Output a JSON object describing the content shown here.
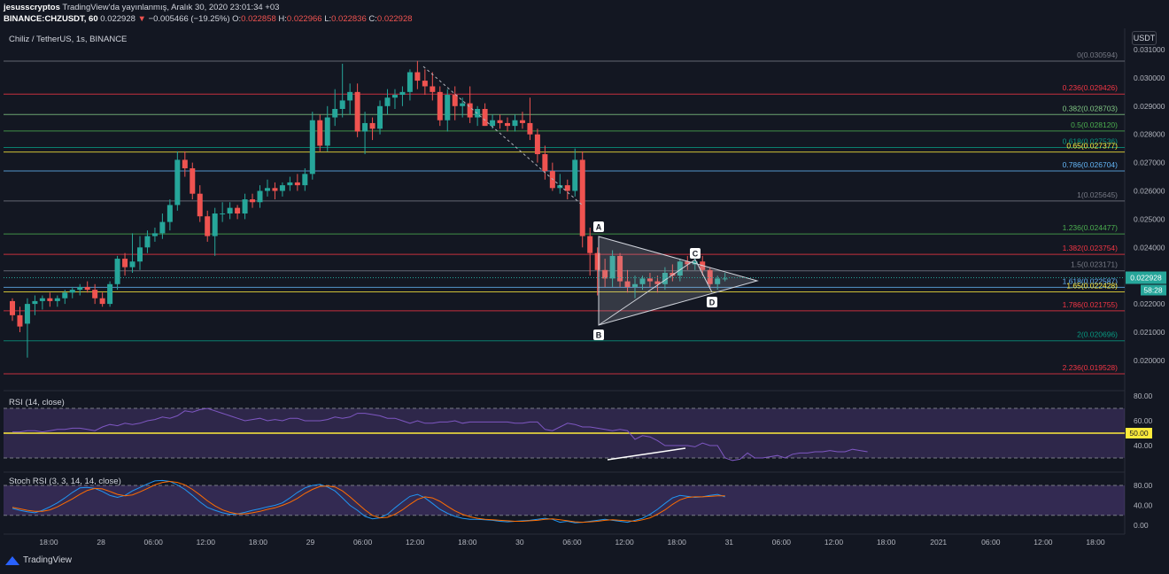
{
  "header": {
    "user": "jesusscryptos",
    "published": "TradingView'da yayınlanmış, Aralık 30, 2020 23:01:34 +03",
    "symbol": "BINANCE:CHZUSDT, 60",
    "last": "0.022928",
    "change": "−0.005466 (−19.25%)",
    "o_label": "O:",
    "o": "0.022858",
    "h_label": "H:",
    "h": "0.022966",
    "l_label": "L:",
    "l": "0.022836",
    "c_label": "C:",
    "c": "0.022928"
  },
  "chart_title": "Chiliz / TetherUS, 1s, BINANCE",
  "currency_button": "USDT",
  "price_axis": [
    "0.031000",
    "0.030000",
    "0.029000",
    "0.028000",
    "0.027000",
    "0.026000",
    "0.025000",
    "0.024000",
    "0.023000",
    "0.022000",
    "0.021000",
    "0.020000"
  ],
  "last_price_tag": "0.022928",
  "countdown_tag": "58:28",
  "fib_levels": [
    {
      "label": "0(0.030594)",
      "price": 0.030594,
      "color": "#787b86"
    },
    {
      "label": "0.236(0.029426)",
      "price": 0.029426,
      "color": "#f23645"
    },
    {
      "label": "0.382(0.028703)",
      "price": 0.028703,
      "color": "#81c784"
    },
    {
      "label": "0.5(0.028120)",
      "price": 0.02812,
      "color": "#4caf50"
    },
    {
      "label": "0.618(0.027536)",
      "price": 0.027536,
      "color": "#089981"
    },
    {
      "label": "0.65(0.027377)",
      "price": 0.027377,
      "color": "#ffeb3b"
    },
    {
      "label": "0.786(0.026704)",
      "price": 0.026704,
      "color": "#64b5f6"
    },
    {
      "label": "1(0.025645)",
      "price": 0.025645,
      "color": "#787b86"
    },
    {
      "label": "1.236(0.024477)",
      "price": 0.024477,
      "color": "#4caf50"
    },
    {
      "label": "1.382(0.023754)",
      "price": 0.023754,
      "color": "#f23645"
    },
    {
      "label": "1.5(0.023171)",
      "price": 0.023171,
      "color": "#787b86"
    },
    {
      "label": "1.618(0.022587)",
      "price": 0.022587,
      "color": "#64b5f6"
    },
    {
      "label": "1.65(0.022428)",
      "price": 0.022428,
      "color": "#ffeb3b"
    },
    {
      "label": "1.786(0.021755)",
      "price": 0.021755,
      "color": "#f23645"
    },
    {
      "label": "2(0.020696)",
      "price": 0.020696,
      "color": "#089981"
    },
    {
      "label": "2.236(0.019528)",
      "price": 0.019528,
      "color": "#f23645"
    }
  ],
  "pattern_points": [
    "A",
    "B",
    "C",
    "D"
  ],
  "rsi": {
    "label": "RSI (14, close)",
    "axis": [
      "80.00",
      "60.00",
      "40.00"
    ],
    "level_tag": "50.00",
    "values": [
      51,
      51,
      52,
      52,
      51,
      52,
      53,
      53,
      54,
      54,
      53,
      52,
      55,
      57,
      56,
      58,
      57,
      58,
      60,
      61,
      63,
      62,
      64,
      68,
      67,
      69,
      70,
      68,
      66,
      64,
      62,
      60,
      61,
      62,
      60,
      61,
      60,
      62,
      62,
      60,
      60,
      60,
      61,
      63,
      62,
      63,
      66,
      66,
      65,
      64,
      62,
      62,
      60,
      58,
      60,
      58,
      58,
      59,
      59,
      60,
      58,
      59,
      59,
      59,
      59,
      59,
      59,
      58,
      58,
      59,
      59,
      53,
      52,
      55,
      58,
      57,
      55,
      55,
      54,
      53,
      52,
      53,
      52,
      45,
      48,
      47,
      44,
      40,
      40,
      40,
      40,
      39,
      42,
      40,
      40,
      30,
      28,
      29,
      34,
      30,
      30,
      31,
      32,
      30,
      33,
      34,
      34,
      35,
      35,
      36,
      35,
      35,
      37,
      36,
      35
    ]
  },
  "stoch": {
    "label": "Stoch RSI (3, 3, 14, 14, close)",
    "axis": [
      "80.00",
      "40.00",
      "0.00"
    ],
    "k": [
      34,
      30,
      27,
      25,
      30,
      37,
      45,
      55,
      66,
      75,
      76,
      74,
      68,
      60,
      56,
      60,
      69,
      76,
      83,
      89,
      90,
      88,
      81,
      72,
      60,
      47,
      36,
      30,
      25,
      22,
      23,
      26,
      30,
      33,
      37,
      40,
      45,
      55,
      66,
      75,
      80,
      82,
      77,
      69,
      55,
      40,
      30,
      18,
      13,
      15,
      22,
      35,
      47,
      58,
      62,
      55,
      44,
      32,
      24,
      18,
      14,
      12,
      12,
      11,
      10,
      8,
      7,
      8,
      9,
      10,
      12,
      14,
      12,
      6,
      8,
      5,
      6,
      8,
      10,
      12,
      10,
      8,
      6,
      10,
      14,
      22,
      32,
      44,
      55,
      60,
      58,
      56,
      57,
      60,
      62,
      57
    ],
    "d": [
      36,
      33,
      30,
      28,
      28,
      31,
      37,
      45,
      53,
      62,
      70,
      74,
      73,
      68,
      62,
      59,
      61,
      67,
      74,
      81,
      86,
      88,
      86,
      81,
      72,
      61,
      49,
      39,
      31,
      26,
      23,
      23,
      25,
      28,
      32,
      35,
      40,
      46,
      54,
      64,
      72,
      78,
      79,
      77,
      69,
      57,
      44,
      31,
      20,
      15,
      16,
      22,
      31,
      42,
      52,
      57,
      55,
      48,
      38,
      29,
      22,
      17,
      14,
      12,
      11,
      10,
      9,
      8,
      8,
      9,
      10,
      12,
      13,
      11,
      9,
      7,
      6,
      7,
      8,
      10,
      11,
      10,
      9,
      8,
      11,
      15,
      22,
      31,
      42,
      51,
      56,
      57,
      57,
      58,
      59,
      59
    ]
  },
  "time_axis": [
    "18:00",
    "28",
    "06:00",
    "12:00",
    "18:00",
    "29",
    "06:00",
    "12:00",
    "18:00",
    "30",
    "06:00",
    "12:00",
    "18:00",
    "31",
    "06:00",
    "12:00",
    "18:00",
    "2021",
    "06:00",
    "12:00",
    "18:00"
  ],
  "chart_data": {
    "type": "candlestick",
    "title": "Chiliz / TetherUS, 1s, BINANCE",
    "ylim": [
      0.0195,
      0.0315
    ],
    "candles": [
      [
        0.0221,
        0.0222,
        0.0214,
        0.0216
      ],
      [
        0.0216,
        0.0219,
        0.021,
        0.0212
      ],
      [
        0.0213,
        0.0222,
        0.0201,
        0.022
      ],
      [
        0.022,
        0.0223,
        0.0216,
        0.0221
      ],
      [
        0.0221,
        0.0223,
        0.0218,
        0.0222
      ],
      [
        0.0222,
        0.0224,
        0.0219,
        0.0221
      ],
      [
        0.0221,
        0.0223,
        0.0219,
        0.0222
      ],
      [
        0.0222,
        0.0225,
        0.022,
        0.0224
      ],
      [
        0.0224,
        0.0226,
        0.0222,
        0.0225
      ],
      [
        0.0225,
        0.0227,
        0.0223,
        0.0226
      ],
      [
        0.0226,
        0.0228,
        0.0224,
        0.0225
      ],
      [
        0.0225,
        0.0227,
        0.022,
        0.0222
      ],
      [
        0.0222,
        0.0224,
        0.0219,
        0.022
      ],
      [
        0.022,
        0.0228,
        0.0219,
        0.0227
      ],
      [
        0.0227,
        0.0237,
        0.0225,
        0.0236
      ],
      [
        0.0236,
        0.0238,
        0.023,
        0.0233
      ],
      [
        0.0233,
        0.0245,
        0.0231,
        0.0235
      ],
      [
        0.0235,
        0.0244,
        0.0232,
        0.024
      ],
      [
        0.024,
        0.0246,
        0.0238,
        0.0244
      ],
      [
        0.0244,
        0.0247,
        0.0242,
        0.0245
      ],
      [
        0.0245,
        0.0252,
        0.0243,
        0.0249
      ],
      [
        0.0249,
        0.0257,
        0.0246,
        0.0255
      ],
      [
        0.0255,
        0.0274,
        0.0253,
        0.0271
      ],
      [
        0.0271,
        0.0274,
        0.0265,
        0.0268
      ],
      [
        0.0268,
        0.027,
        0.0257,
        0.0259
      ],
      [
        0.0259,
        0.0262,
        0.0249,
        0.0251
      ],
      [
        0.0251,
        0.0253,
        0.0242,
        0.0244
      ],
      [
        0.0244,
        0.0254,
        0.0237,
        0.0252
      ],
      [
        0.0252,
        0.0256,
        0.0249,
        0.0252
      ],
      [
        0.0252,
        0.0256,
        0.025,
        0.0254
      ],
      [
        0.0254,
        0.0255,
        0.025,
        0.0252
      ],
      [
        0.0252,
        0.0259,
        0.025,
        0.0257
      ],
      [
        0.0257,
        0.0259,
        0.0254,
        0.0256
      ],
      [
        0.0256,
        0.0262,
        0.0254,
        0.026
      ],
      [
        0.026,
        0.0264,
        0.0258,
        0.0261
      ],
      [
        0.0261,
        0.0263,
        0.0257,
        0.026
      ],
      [
        0.026,
        0.0263,
        0.0258,
        0.0262
      ],
      [
        0.0262,
        0.0265,
        0.026,
        0.0263
      ],
      [
        0.0263,
        0.0266,
        0.026,
        0.0262
      ],
      [
        0.0262,
        0.0268,
        0.026,
        0.0266
      ],
      [
        0.0266,
        0.0288,
        0.0264,
        0.0285
      ],
      [
        0.0285,
        0.0287,
        0.0274,
        0.0276
      ],
      [
        0.0276,
        0.029,
        0.0274,
        0.0286
      ],
      [
        0.0286,
        0.0296,
        0.0283,
        0.0289
      ],
      [
        0.0289,
        0.0305,
        0.0286,
        0.0292
      ],
      [
        0.0292,
        0.0298,
        0.0287,
        0.0295
      ],
      [
        0.0295,
        0.0298,
        0.0279,
        0.0281
      ],
      [
        0.0281,
        0.0288,
        0.0273,
        0.0284
      ],
      [
        0.0284,
        0.0286,
        0.0278,
        0.0282
      ],
      [
        0.0282,
        0.0292,
        0.028,
        0.029
      ],
      [
        0.029,
        0.0296,
        0.0287,
        0.0293
      ],
      [
        0.0293,
        0.0296,
        0.0289,
        0.0294
      ],
      [
        0.0294,
        0.0297,
        0.029,
        0.0295
      ],
      [
        0.0295,
        0.0303,
        0.0292,
        0.0302
      ],
      [
        0.0302,
        0.0306,
        0.0296,
        0.0299
      ],
      [
        0.0299,
        0.0303,
        0.0294,
        0.0297
      ],
      [
        0.0297,
        0.0302,
        0.0292,
        0.0295
      ],
      [
        0.0295,
        0.0297,
        0.0283,
        0.0285
      ],
      [
        0.0285,
        0.0296,
        0.0281,
        0.0294
      ],
      [
        0.0294,
        0.0297,
        0.0285,
        0.029
      ],
      [
        0.029,
        0.0293,
        0.0286,
        0.0291
      ],
      [
        0.0291,
        0.0297,
        0.0284,
        0.0286
      ],
      [
        0.0286,
        0.029,
        0.0283,
        0.0289
      ],
      [
        0.0289,
        0.0291,
        0.0283,
        0.0283
      ],
      [
        0.0283,
        0.0287,
        0.0282,
        0.0285
      ],
      [
        0.0285,
        0.0287,
        0.0282,
        0.0284
      ],
      [
        0.0284,
        0.0286,
        0.0281,
        0.0283
      ],
      [
        0.0283,
        0.0287,
        0.0281,
        0.0285
      ],
      [
        0.0285,
        0.0288,
        0.0282,
        0.0284
      ],
      [
        0.0284,
        0.0293,
        0.0278,
        0.028
      ],
      [
        0.028,
        0.0282,
        0.027,
        0.0273
      ],
      [
        0.0273,
        0.0276,
        0.0264,
        0.0267
      ],
      [
        0.0267,
        0.027,
        0.026,
        0.0261
      ],
      [
        0.0261,
        0.0266,
        0.0259,
        0.0262
      ],
      [
        0.0262,
        0.0264,
        0.0257,
        0.026
      ],
      [
        0.026,
        0.0275,
        0.0258,
        0.0271
      ],
      [
        0.0271,
        0.0274,
        0.024,
        0.0244
      ],
      [
        0.0244,
        0.0247,
        0.023,
        0.0238
      ],
      [
        0.0238,
        0.024,
        0.0223,
        0.0232
      ],
      [
        0.0232,
        0.0236,
        0.0226,
        0.0229
      ],
      [
        0.0229,
        0.0239,
        0.0226,
        0.0237
      ],
      [
        0.0237,
        0.0238,
        0.0226,
        0.0228
      ],
      [
        0.0228,
        0.0232,
        0.0224,
        0.0226
      ],
      [
        0.0226,
        0.023,
        0.0222,
        0.0227
      ],
      [
        0.0227,
        0.023,
        0.0225,
        0.0229
      ],
      [
        0.0229,
        0.0231,
        0.0226,
        0.0228
      ],
      [
        0.0228,
        0.023,
        0.0224,
        0.0227
      ],
      [
        0.0227,
        0.0233,
        0.0225,
        0.0231
      ],
      [
        0.0231,
        0.0234,
        0.0228,
        0.023
      ],
      [
        0.023,
        0.0236,
        0.0228,
        0.0235
      ],
      [
        0.0235,
        0.0237,
        0.0232,
        0.0234
      ],
      [
        0.0234,
        0.0237,
        0.0232,
        0.0235
      ],
      [
        0.0235,
        0.0237,
        0.023,
        0.0232
      ],
      [
        0.0232,
        0.0233,
        0.0226,
        0.0227
      ],
      [
        0.0227,
        0.023,
        0.0225,
        0.0229
      ],
      [
        0.0229,
        0.0231,
        0.0228,
        0.0229
      ]
    ]
  }
}
